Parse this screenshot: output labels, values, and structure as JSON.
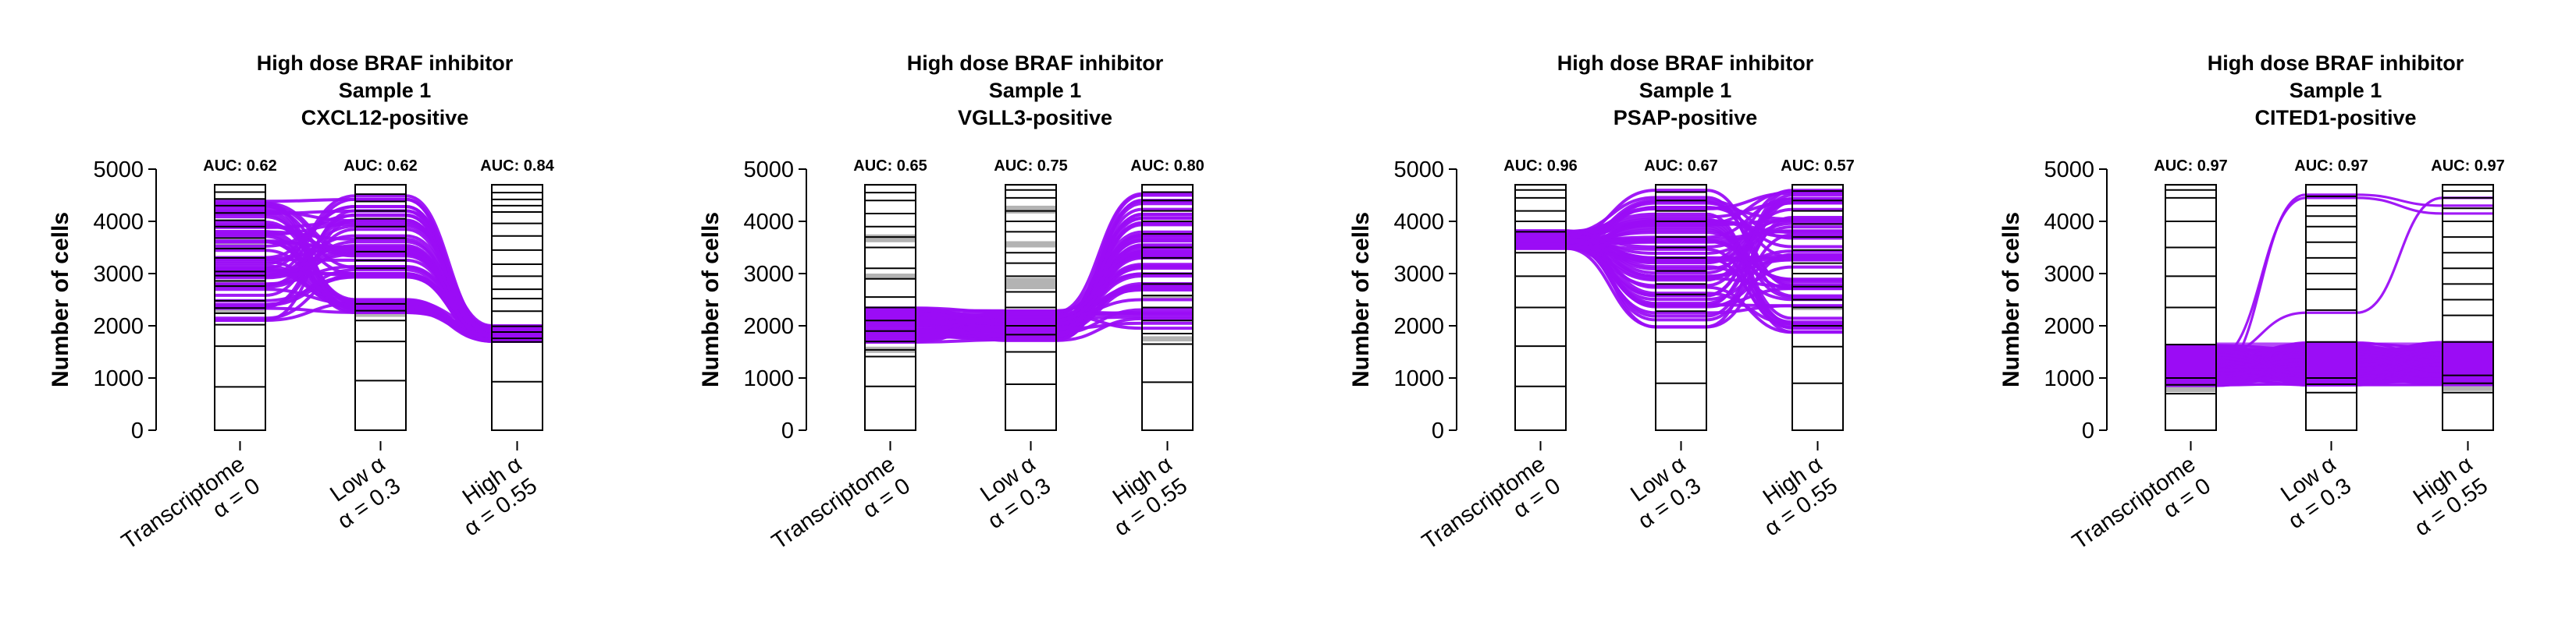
{
  "figure": {
    "colors": {
      "flow": "#9b0df5",
      "highlight_segment": "#b3b3b3",
      "segment_stroke": "#000000",
      "axis": "#000000"
    },
    "axis_ticks": [
      "0",
      "1000",
      "2000",
      "3000",
      "4000",
      "5000"
    ],
    "ylabel": "Number of cells",
    "column_labels": [
      {
        "line1": "Transcriptome",
        "line2": "α = 0"
      },
      {
        "line1": "Low α",
        "line2": "α = 0.3"
      },
      {
        "line1": "High α",
        "line2": "α = 0.55"
      }
    ]
  },
  "chart_data": [
    {
      "type": "alluvial",
      "title_lines": [
        "High dose BRAF inhibitor",
        "Sample 1",
        "CXCL12-positive"
      ],
      "auc": [
        "AUC: 0.62",
        "AUC: 0.62",
        "AUC: 0.84"
      ],
      "ylabel": "Number of cells",
      "ylim": [
        0,
        4700
      ],
      "yticks": [
        0,
        1000,
        2000,
        3000,
        4000,
        5000
      ],
      "x_columns": [
        "Transcriptome α = 0",
        "Low α α = 0.3",
        "High α α = 0.55"
      ],
      "total_cells": 4700,
      "positive_cells": 550,
      "cluster_boundaries": [
        [
          830,
          1610,
          2020,
          2240,
          2340,
          2480,
          2760,
          2860,
          2960,
          3040,
          3300,
          3480,
          3680,
          3900,
          4020,
          4160,
          4300,
          4430,
          4560
        ],
        [
          950,
          1700,
          2100,
          2290,
          2420,
          3100,
          3250,
          3420,
          3680,
          3900,
          4050,
          4200,
          4380,
          4520
        ],
        [
          930,
          1690,
          1760,
          1880,
          1990,
          2280,
          2520,
          2700,
          2950,
          3180,
          3450,
          3720,
          3960,
          4180,
          4300,
          4420,
          4550
        ]
      ],
      "highlighted_segments": [
        [
          [
            2260,
            2360
          ],
          [
            2760,
            2860
          ],
          [
            3500,
            3580
          ],
          [
            4330,
            4430
          ]
        ],
        [
          [
            2170,
            2300
          ],
          [
            3900,
            4050
          ]
        ],
        []
      ]
    },
    {
      "type": "alluvial",
      "title_lines": [
        "High dose BRAF inhibitor",
        "Sample 1",
        "VGLL3-positive"
      ],
      "auc": [
        "AUC: 0.65",
        "AUC: 0.75",
        "AUC: 0.80"
      ],
      "ylabel": "Number of cells",
      "ylim": [
        0,
        4700
      ],
      "yticks": [
        0,
        1000,
        2000,
        3000,
        4000,
        5000
      ],
      "x_columns": [
        "Transcriptome α = 0",
        "Low α α = 0.3",
        "High α α = 0.55"
      ],
      "total_cells": 4700,
      "positive_cells": 600,
      "cluster_boundaries": [
        [
          840,
          1410,
          1540,
          1700,
          1900,
          2100,
          2350,
          2550,
          2900,
          3100,
          3500,
          3700,
          3900,
          4150,
          4400,
          4550
        ],
        [
          880,
          1500,
          1830,
          2000,
          2350,
          2650,
          2950,
          3200,
          3400,
          3800,
          4000,
          4200,
          4450,
          4600
        ],
        [
          920,
          1650,
          1850,
          2100,
          2350,
          2580,
          2800,
          3000,
          3300,
          3500,
          3760,
          4000,
          4200,
          4400,
          4560
        ]
      ],
      "highlighted_segments": [
        [
          [
            1480,
            1600
          ],
          [
            2900,
            3000
          ],
          [
            3600,
            3750
          ]
        ],
        [
          [
            2700,
            2920
          ],
          [
            3500,
            3620
          ],
          [
            4150,
            4300
          ]
        ],
        [
          [
            1700,
            1800
          ],
          [
            2480,
            2580
          ],
          [
            3350,
            3450
          ]
        ]
      ]
    },
    {
      "type": "alluvial",
      "title_lines": [
        "High dose BRAF inhibitor",
        "Sample 1",
        "PSAP-positive"
      ],
      "auc": [
        "AUC: 0.96",
        "AUC: 0.67",
        "AUC: 0.57"
      ],
      "ylabel": "Number of cells",
      "ylim": [
        0,
        4700
      ],
      "yticks": [
        0,
        1000,
        2000,
        3000,
        4000,
        5000
      ],
      "x_columns": [
        "Transcriptome α = 0",
        "Low α α = 0.3",
        "High α α = 0.55"
      ],
      "total_cells": 4700,
      "positive_cells": 400,
      "cluster_boundaries": [
        [
          840,
          1610,
          2350,
          2950,
          3400,
          3800,
          4000,
          4200,
          4450,
          4600
        ],
        [
          900,
          1690,
          2280,
          2600,
          2800,
          3050,
          3300,
          3500,
          3700,
          4000,
          4200,
          4400,
          4560
        ],
        [
          900,
          1600,
          2000,
          2350,
          2500,
          2750,
          3000,
          3200,
          3450,
          3700,
          3950,
          4200,
          4400,
          4580
        ]
      ],
      "highlighted_segments": [
        [],
        [],
        [
          [
            2300,
            2400
          ]
        ]
      ]
    },
    {
      "type": "alluvial",
      "title_lines": [
        "High dose BRAF inhibitor",
        "Sample 1",
        "CITED1-positive"
      ],
      "auc": [
        "AUC: 0.97",
        "AUC: 0.97",
        "AUC: 0.97"
      ],
      "ylabel": "Number of cells",
      "ylim": [
        0,
        4700
      ],
      "yticks": [
        0,
        1000,
        2000,
        3000,
        4000,
        5000
      ],
      "x_columns": [
        "Transcriptome α = 0",
        "Low α α = 0.3",
        "High α α = 0.55"
      ],
      "total_cells": 4700,
      "positive_cells": 800,
      "cluster_boundaries": [
        [
          700,
          870,
          1000,
          1640,
          2350,
          2950,
          3500,
          4000,
          4450,
          4600
        ],
        [
          720,
          880,
          1000,
          1690,
          2300,
          2700,
          3000,
          3300,
          3600,
          3900,
          4100,
          4300,
          4480
        ],
        [
          720,
          900,
          1050,
          1690,
          2200,
          2500,
          2800,
          3100,
          3400,
          3700,
          4000,
          4250,
          4450,
          4580
        ]
      ],
      "highlighted_segments": [
        [
          [
            730,
            890
          ]
        ],
        [
          [
            850,
            1000
          ]
        ],
        [
          [
            750,
            900
          ]
        ]
      ]
    }
  ]
}
